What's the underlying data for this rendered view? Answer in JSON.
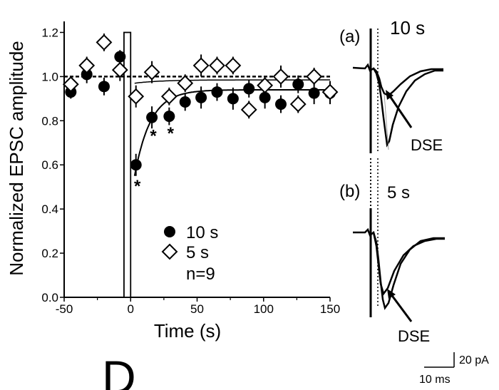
{
  "chart_data": {
    "type": "scatter",
    "xlabel": "Time (s)",
    "ylabel": "Normalized EPSC amplitude",
    "xlim": [
      -50,
      150
    ],
    "ylim": [
      0,
      1.25
    ],
    "x_ticks": [
      "-50",
      "0",
      "50",
      "100",
      "150"
    ],
    "y_ticks": [
      "0.0",
      "0.2",
      "0.4",
      "0.6",
      "0.8",
      "1.0",
      "1.2"
    ],
    "legend": {
      "series_a": "10 s",
      "series_b": "5 s",
      "n": "n=9"
    },
    "series": [
      {
        "name": "10 s",
        "marker": "filled-circle",
        "x": [
          -45,
          -33,
          -20,
          -8,
          4,
          16,
          29,
          41,
          53,
          65,
          77,
          89,
          101,
          113,
          126,
          138,
          150
        ],
        "y": [
          0.93,
          1.01,
          0.955,
          1.09,
          0.6,
          0.815,
          0.82,
          0.885,
          0.905,
          0.93,
          0.9,
          0.945,
          0.905,
          0.875,
          0.965,
          0.925,
          0.925
        ],
        "err": [
          0.03,
          0.04,
          0.04,
          0.03,
          0.05,
          0.05,
          0.04,
          0.04,
          0.05,
          0.04,
          0.05,
          0.04,
          0.05,
          0.04,
          0.04,
          0.05,
          0.05
        ]
      },
      {
        "name": "5 s",
        "marker": "open-diamond",
        "x": [
          -45,
          -33,
          -20,
          -8,
          4,
          16,
          29,
          41,
          53,
          65,
          77,
          89,
          101,
          113,
          126,
          138,
          150
        ],
        "y": [
          0.965,
          1.05,
          1.155,
          1.03,
          0.91,
          1.02,
          0.91,
          0.97,
          1.05,
          1.05,
          1.05,
          0.85,
          0.96,
          1.0,
          0.875,
          1.0,
          0.93
        ],
        "err": [
          0.03,
          0.04,
          0.04,
          0.05,
          0.05,
          0.05,
          0.04,
          0.04,
          0.05,
          0.04,
          0.04,
          0.04,
          0.04,
          0.05,
          0.04,
          0.04,
          0.05
        ]
      }
    ],
    "fit_curves": [
      {
        "series": "10 s",
        "baseline": 0.94,
        "amplitude": 0.39,
        "tau_s": 12,
        "start_x": 3
      },
      {
        "series": "5 s",
        "baseline": 0.985,
        "amplitude": 0.015,
        "tau_s": 20,
        "start_x": 3
      }
    ],
    "reference_line_y": 1.0,
    "significance_marks": [
      {
        "x": 4,
        "text": "*"
      },
      {
        "x": 16,
        "text": "*"
      },
      {
        "x": 29,
        "text": "*"
      }
    ],
    "stimulus_bar": {
      "x_start": -5,
      "x_end": 0,
      "label": ""
    }
  },
  "traces": {
    "panel_a": {
      "label": "(a)",
      "duration": "10 s",
      "arrow_label": "DSE"
    },
    "panel_b": {
      "label": "(b)",
      "duration": "5 s",
      "arrow_label": "DSE"
    },
    "scale_bar": {
      "amplitude": "20 pA",
      "time": "10 ms"
    }
  },
  "panel_letter": "D",
  "colors": {
    "ink": "#000000",
    "background": "#ffffff"
  }
}
